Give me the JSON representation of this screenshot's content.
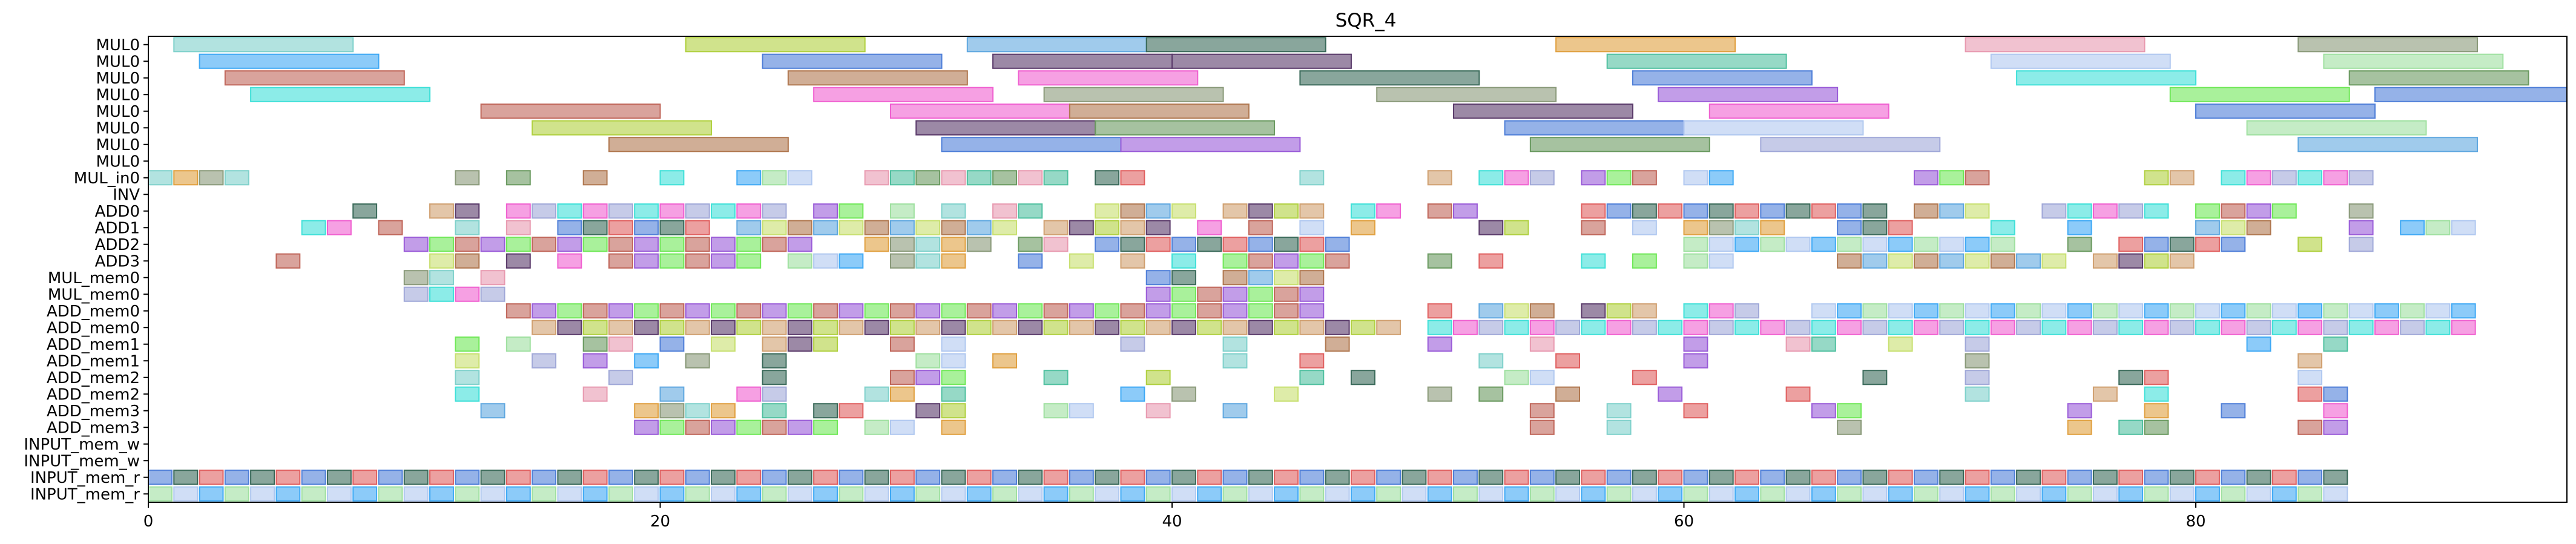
{
  "chart_data": {
    "type": "gantt",
    "title": "SQR_4",
    "xlabel": "",
    "ylabel": "",
    "xlim": [
      0,
      94.5
    ],
    "xticks": [
      0,
      20,
      40,
      60,
      80
    ],
    "grid": false,
    "rows": [
      "MUL0",
      "MUL0",
      "MUL0",
      "MUL0",
      "MUL0",
      "MUL0",
      "MUL0",
      "MUL0",
      "MUL_in0",
      "INV",
      "ADD0",
      "ADD1",
      "ADD2",
      "ADD3",
      "MUL_mem0",
      "MUL_mem0",
      "ADD_mem0",
      "ADD_mem0",
      "ADD_mem1",
      "ADD_mem1",
      "ADD_mem2",
      "ADD_mem2",
      "ADD_mem3",
      "ADD_mem3",
      "INPUT_mem_w",
      "INPUT_mem_w",
      "INPUT_mem_r",
      "INPUT_mem_r"
    ],
    "palette": [
      "#7fd1cb",
      "#3fa9f5",
      "#c0665a",
      "#3fe0d8",
      "#b0d040",
      "#b07850",
      "#4f7fd8",
      "#6a9a60",
      "#e0a040",
      "#9fe0a0",
      "#9a5cd8",
      "#f060d0",
      "#d0a070",
      "#60a8e0",
      "#3a6a5a",
      "#e89ab0",
      "#8a9a7a",
      "#b0c8f0",
      "#70e858",
      "#a0a8d8",
      "#5a3a6a",
      "#c8e070",
      "#e06060",
      "#50c0a0"
    ],
    "bars": [
      {
        "row": 0,
        "start": 1,
        "end": 8,
        "c": 0
      },
      {
        "row": 0,
        "start": 21,
        "end": 28,
        "c": 4
      },
      {
        "row": 0,
        "start": 32,
        "end": 39,
        "c": 13
      },
      {
        "row": 0,
        "start": 39,
        "end": 46,
        "c": 14
      },
      {
        "row": 0,
        "start": 55,
        "end": 62,
        "c": 8
      },
      {
        "row": 0,
        "start": 71,
        "end": 78,
        "c": 15
      },
      {
        "row": 0,
        "start": 84,
        "end": 91,
        "c": 16
      },
      {
        "row": 1,
        "start": 2,
        "end": 9,
        "c": 1
      },
      {
        "row": 1,
        "start": 24,
        "end": 31,
        "c": 6
      },
      {
        "row": 1,
        "start": 33,
        "end": 40,
        "c": 20
      },
      {
        "row": 1,
        "start": 40,
        "end": 47,
        "c": 20
      },
      {
        "row": 1,
        "start": 57,
        "end": 64,
        "c": 23
      },
      {
        "row": 1,
        "start": 72,
        "end": 79,
        "c": 17
      },
      {
        "row": 1,
        "start": 85,
        "end": 92,
        "c": 9
      },
      {
        "row": 2,
        "start": 3,
        "end": 10,
        "c": 2
      },
      {
        "row": 2,
        "start": 25,
        "end": 32,
        "c": 5
      },
      {
        "row": 2,
        "start": 34,
        "end": 41,
        "c": 11
      },
      {
        "row": 2,
        "start": 45,
        "end": 52,
        "c": 14
      },
      {
        "row": 2,
        "start": 58,
        "end": 65,
        "c": 6
      },
      {
        "row": 2,
        "start": 73,
        "end": 80,
        "c": 3
      },
      {
        "row": 2,
        "start": 86,
        "end": 93,
        "c": 7
      },
      {
        "row": 3,
        "start": 4,
        "end": 11,
        "c": 3
      },
      {
        "row": 3,
        "start": 26,
        "end": 33,
        "c": 11
      },
      {
        "row": 3,
        "start": 35,
        "end": 42,
        "c": 16
      },
      {
        "row": 3,
        "start": 48,
        "end": 55,
        "c": 16
      },
      {
        "row": 3,
        "start": 59,
        "end": 66,
        "c": 10
      },
      {
        "row": 3,
        "start": 79,
        "end": 86,
        "c": 18
      },
      {
        "row": 3,
        "start": 87,
        "end": 94.5,
        "c": 6
      },
      {
        "row": 4,
        "start": 13,
        "end": 20,
        "c": 2
      },
      {
        "row": 4,
        "start": 29,
        "end": 36,
        "c": 11
      },
      {
        "row": 4,
        "start": 36,
        "end": 43,
        "c": 5
      },
      {
        "row": 4,
        "start": 51,
        "end": 58,
        "c": 20
      },
      {
        "row": 4,
        "start": 61,
        "end": 68,
        "c": 11
      },
      {
        "row": 4,
        "start": 80,
        "end": 87,
        "c": 6
      },
      {
        "row": 5,
        "start": 15,
        "end": 22,
        "c": 4
      },
      {
        "row": 5,
        "start": 30,
        "end": 37,
        "c": 20
      },
      {
        "row": 5,
        "start": 37,
        "end": 44,
        "c": 7
      },
      {
        "row": 5,
        "start": 53,
        "end": 60,
        "c": 6
      },
      {
        "row": 5,
        "start": 60,
        "end": 67,
        "c": 17
      },
      {
        "row": 5,
        "start": 82,
        "end": 89,
        "c": 9
      },
      {
        "row": 6,
        "start": 18,
        "end": 25,
        "c": 5
      },
      {
        "row": 6,
        "start": 31,
        "end": 38,
        "c": 6
      },
      {
        "row": 6,
        "start": 38,
        "end": 45,
        "c": 10
      },
      {
        "row": 6,
        "start": 54,
        "end": 61,
        "c": 7
      },
      {
        "row": 6,
        "start": 63,
        "end": 70,
        "c": 19
      },
      {
        "row": 6,
        "start": 84,
        "end": 91,
        "c": 13
      },
      {
        "row": 7,
        "start": null,
        "end": null,
        "c": 0
      }
    ],
    "cells": [
      {
        "row": 8,
        "xs": [
          0,
          1,
          2,
          3,
          12,
          14,
          17,
          20,
          23,
          24,
          25,
          28,
          29,
          30,
          31,
          32,
          33,
          34,
          35,
          37,
          38,
          45,
          50,
          52,
          53,
          54,
          56,
          57,
          58,
          60,
          61,
          69,
          70,
          71,
          78,
          79,
          81,
          82,
          83,
          84,
          85,
          86
        ]
      },
      {
        "row": 10,
        "xs": [
          8,
          11,
          12,
          14,
          15,
          16,
          17,
          18,
          19,
          20,
          21,
          22,
          23,
          24,
          26,
          27,
          29,
          31,
          33,
          34,
          37,
          38,
          39,
          40,
          42,
          43,
          44,
          45,
          47,
          48,
          50,
          51,
          56,
          57,
          58,
          59,
          60,
          61,
          62,
          63,
          64,
          65,
          66,
          67,
          69,
          70,
          71,
          74,
          75,
          76,
          77,
          78,
          80,
          81,
          82,
          83,
          86
        ]
      },
      {
        "row": 11,
        "xs": [
          6,
          7,
          9,
          12,
          14,
          16,
          17,
          18,
          19,
          20,
          21,
          23,
          24,
          25,
          26,
          27,
          28,
          29,
          30,
          31,
          32,
          33,
          35,
          36,
          37,
          38,
          39,
          41,
          43,
          45,
          47,
          52,
          53,
          56,
          58,
          60,
          61,
          62,
          63,
          66,
          67,
          68,
          72,
          75,
          80,
          81,
          82,
          86,
          88,
          89,
          90
        ]
      },
      {
        "row": 12,
        "xs": [
          10,
          11,
          12,
          13,
          14,
          15,
          16,
          17,
          18,
          19,
          20,
          21,
          22,
          23,
          24,
          25,
          28,
          29,
          30,
          31,
          32,
          34,
          35,
          37,
          38,
          39,
          40,
          41,
          42,
          43,
          44,
          45,
          46,
          60,
          61,
          62,
          63,
          64,
          65,
          66,
          67,
          68,
          69,
          70,
          71,
          72,
          75,
          77,
          78,
          79,
          80,
          81,
          84,
          86
        ]
      },
      {
        "row": 13,
        "xs": [
          5,
          11,
          12,
          14,
          16,
          18,
          19,
          20,
          21,
          22,
          23,
          25,
          26,
          27,
          29,
          30,
          31,
          34,
          36,
          38,
          40,
          42,
          43,
          44,
          45,
          46,
          50,
          52,
          56,
          58,
          60,
          61,
          66,
          67,
          68,
          69,
          70,
          71,
          72,
          73,
          74,
          76,
          77,
          78,
          79
        ]
      },
      {
        "row": 14,
        "xs": [
          10,
          11,
          13,
          39,
          40,
          42,
          43,
          44,
          45
        ]
      },
      {
        "row": 15,
        "xs": [
          10,
          11,
          12,
          13,
          39,
          40,
          41,
          42,
          43,
          44,
          45
        ]
      },
      {
        "row": 16,
        "xs": [
          14,
          15,
          16,
          17,
          18,
          19,
          20,
          21,
          22,
          23,
          24,
          25,
          26,
          27,
          28,
          29,
          30,
          31,
          32,
          33,
          34,
          35,
          36,
          37,
          38,
          39,
          40,
          41,
          42,
          43,
          44,
          45,
          50,
          52,
          53,
          54,
          56,
          57,
          58,
          60,
          61,
          62,
          65,
          66,
          67,
          68,
          69,
          70,
          71,
          72,
          73,
          74,
          75,
          76,
          77,
          78,
          79,
          80,
          81,
          82,
          83,
          84,
          85,
          86,
          87,
          88,
          89,
          90
        ]
      },
      {
        "row": 17,
        "xs": [
          15,
          16,
          17,
          18,
          19,
          20,
          21,
          22,
          23,
          24,
          25,
          26,
          27,
          28,
          29,
          30,
          31,
          32,
          33,
          34,
          35,
          36,
          37,
          38,
          39,
          40,
          41,
          42,
          43,
          44,
          45,
          46,
          47,
          48,
          50,
          51,
          52,
          53,
          54,
          55,
          56,
          57,
          58,
          59,
          60,
          61,
          62,
          63,
          64,
          65,
          66,
          67,
          68,
          69,
          70,
          71,
          72,
          73,
          74,
          75,
          76,
          77,
          78,
          79,
          80,
          81,
          82,
          83,
          84,
          85,
          86,
          87,
          88,
          89,
          90
        ]
      },
      {
        "row": 18,
        "xs": [
          12,
          14,
          17,
          18,
          20,
          22,
          24,
          25,
          26,
          29,
          31,
          38,
          42,
          46,
          50,
          54,
          60,
          64,
          65,
          68,
          71,
          82,
          85
        ]
      },
      {
        "row": 19,
        "xs": [
          12,
          15,
          17,
          19,
          21,
          24,
          30,
          31,
          33,
          42,
          45,
          52,
          55,
          60,
          71,
          84
        ]
      },
      {
        "row": 20,
        "xs": [
          12,
          18,
          24,
          29,
          30,
          31,
          35,
          39,
          45,
          47,
          53,
          54,
          58,
          67,
          71,
          77,
          78,
          84
        ]
      },
      {
        "row": 21,
        "xs": [
          12,
          17,
          20,
          23,
          24,
          28,
          29,
          31,
          38,
          40,
          44,
          50,
          52,
          55,
          59,
          64,
          71,
          76,
          78,
          84,
          85
        ]
      },
      {
        "row": 22,
        "xs": [
          13,
          19,
          20,
          21,
          22,
          24,
          26,
          27,
          30,
          31,
          35,
          36,
          39,
          42,
          54,
          57,
          60,
          65,
          66,
          75,
          78,
          81,
          85
        ]
      },
      {
        "row": 23,
        "xs": [
          19,
          20,
          21,
          22,
          23,
          24,
          25,
          26,
          28,
          29,
          31,
          54,
          57,
          66,
          75,
          77,
          78,
          84,
          85
        ]
      },
      {
        "row": 26,
        "xs": [
          0,
          1,
          2,
          3,
          4,
          5,
          6,
          7,
          8,
          9,
          10,
          11,
          12,
          13,
          14,
          15,
          16,
          17,
          18,
          19,
          20,
          21,
          22,
          23,
          24,
          25,
          26,
          27,
          28,
          29,
          30,
          31,
          32,
          33,
          34,
          35,
          36,
          37,
          38,
          39,
          40,
          41,
          42,
          43,
          44,
          45,
          46,
          47,
          48,
          49,
          50,
          51,
          52,
          53,
          54,
          55,
          56,
          57,
          58,
          59,
          60,
          61,
          62,
          63,
          64,
          65,
          66,
          67,
          68,
          69,
          70,
          71,
          72,
          73,
          74,
          75,
          76,
          77,
          78,
          79,
          80,
          81,
          82,
          83,
          84,
          85
        ]
      },
      {
        "row": 27,
        "xs": [
          0,
          1,
          2,
          3,
          4,
          5,
          6,
          7,
          8,
          9,
          10,
          11,
          12,
          13,
          14,
          15,
          16,
          17,
          18,
          19,
          20,
          21,
          22,
          23,
          24,
          25,
          26,
          27,
          28,
          29,
          30,
          31,
          32,
          33,
          34,
          35,
          36,
          37,
          38,
          39,
          40,
          41,
          42,
          43,
          44,
          45,
          46,
          47,
          48,
          49,
          50,
          51,
          52,
          53,
          54,
          55,
          56,
          57,
          58,
          59,
          60,
          61,
          62,
          63,
          64,
          65,
          66,
          67,
          68,
          69,
          70,
          71,
          72,
          73,
          74,
          75,
          76,
          77,
          78,
          79,
          80,
          81,
          82,
          83,
          84,
          85
        ]
      }
    ]
  }
}
